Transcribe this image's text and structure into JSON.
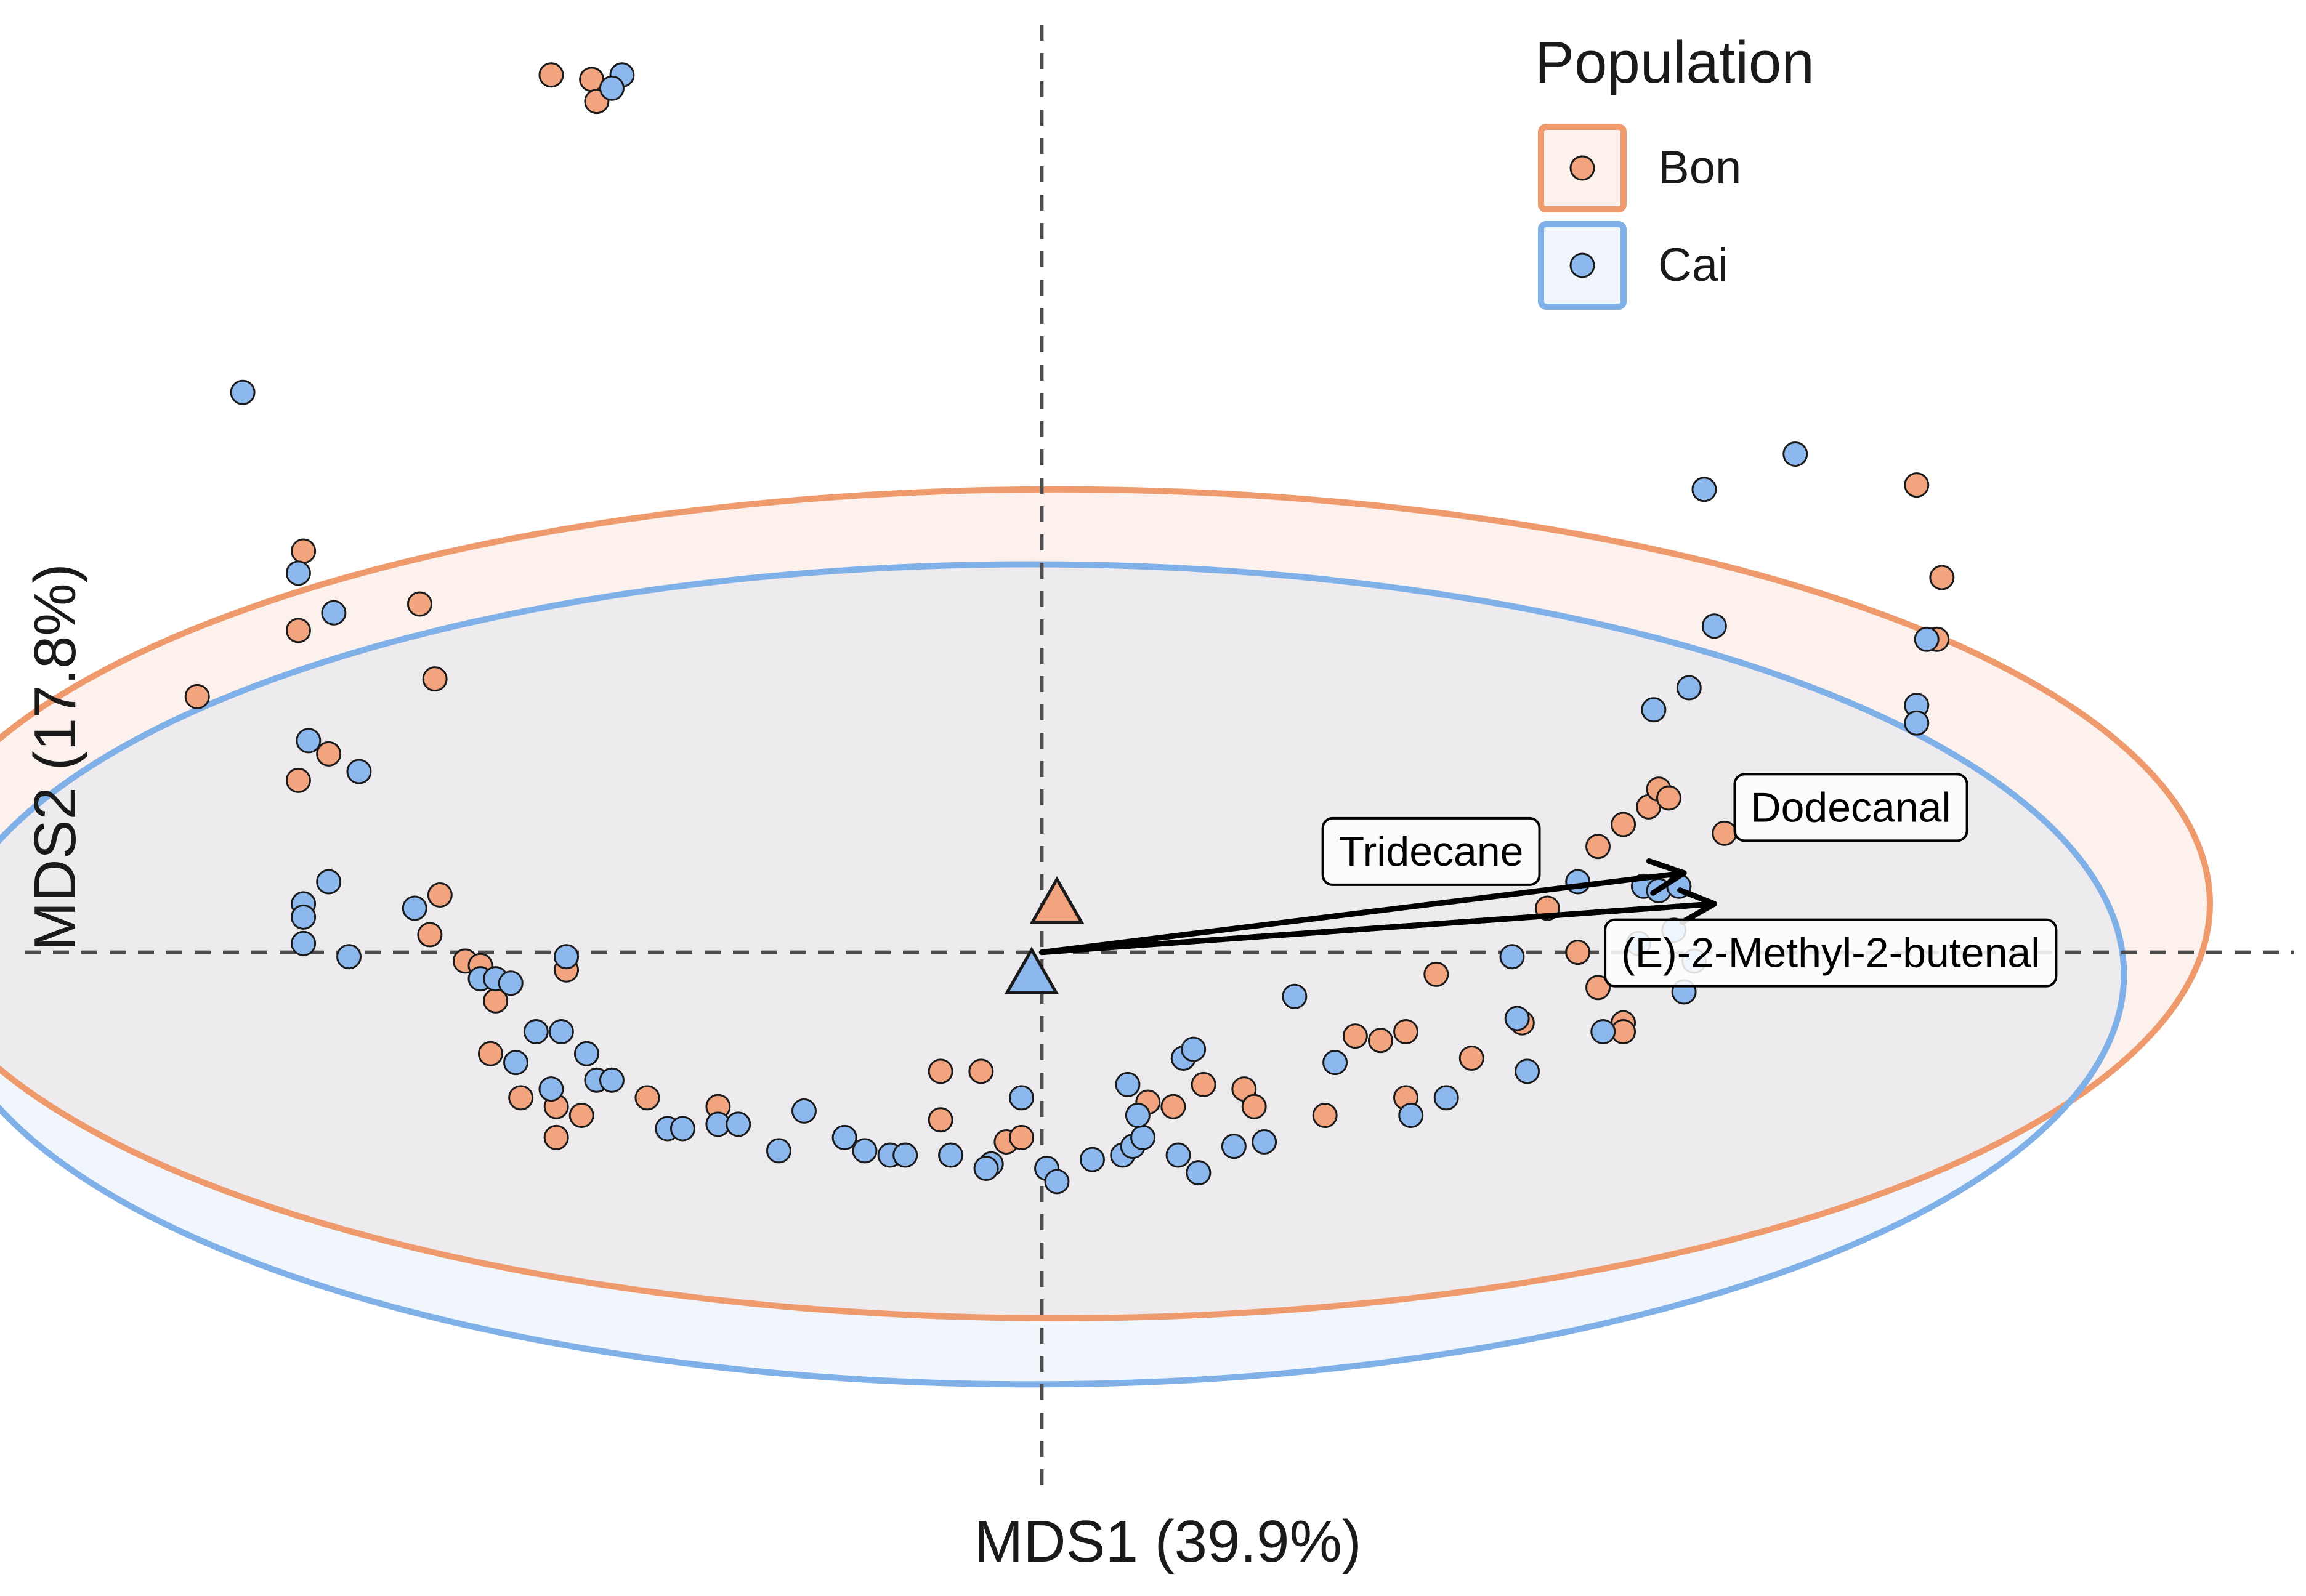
{
  "chart_data": {
    "type": "scatter",
    "xlabel": "MDS1 (39.9%)",
    "ylabel": "MDS2 (17.8%)",
    "xlim": [
      -2.06,
      2.5
    ],
    "ylim": [
      -1.46,
      2.16
    ],
    "reference_lines": {
      "x": 0,
      "y": 0,
      "style": "dashed"
    },
    "legend": {
      "title": "Population",
      "placement": "top-right",
      "entries": [
        {
          "name": "Bon",
          "color": "#ee9a6c"
        },
        {
          "name": "Cai",
          "color": "#80b0e8"
        }
      ]
    },
    "series": [
      {
        "name": "Bon",
        "color": "#ee9a6c",
        "fill": "#f2a47f",
        "points": [
          [
            -0.97,
            1.99
          ],
          [
            -0.89,
            1.98
          ],
          [
            -0.88,
            1.93
          ],
          [
            -1.46,
            0.91
          ],
          [
            -1.47,
            0.73
          ],
          [
            -1.23,
            0.79
          ],
          [
            -1.2,
            0.62
          ],
          [
            -1.67,
            0.58
          ],
          [
            -1.47,
            0.39
          ],
          [
            -1.41,
            0.45
          ],
          [
            -1.19,
            0.13
          ],
          [
            -1.21,
            0.04
          ],
          [
            -1.14,
            -0.02
          ],
          [
            -1.11,
            -0.03
          ],
          [
            -0.94,
            -0.04
          ],
          [
            -1.08,
            -0.11
          ],
          [
            -1.09,
            -0.23
          ],
          [
            -1.03,
            -0.33
          ],
          [
            -0.96,
            -0.35
          ],
          [
            -0.91,
            -0.37
          ],
          [
            -0.96,
            -0.42
          ],
          [
            -0.78,
            -0.33
          ],
          [
            -0.64,
            -0.35
          ],
          [
            -0.2,
            -0.27
          ],
          [
            -0.12,
            -0.27
          ],
          [
            -0.2,
            -0.38
          ],
          [
            -0.07,
            -0.43
          ],
          [
            -0.04,
            -0.42
          ],
          [
            0.21,
            -0.34
          ],
          [
            0.26,
            -0.35
          ],
          [
            0.32,
            -0.3
          ],
          [
            0.4,
            -0.31
          ],
          [
            0.42,
            -0.35
          ],
          [
            0.56,
            -0.37
          ],
          [
            0.62,
            -0.19
          ],
          [
            0.67,
            -0.2
          ],
          [
            0.72,
            -0.18
          ],
          [
            0.72,
            -0.33
          ],
          [
            0.85,
            -0.24
          ],
          [
            0.95,
            -0.16
          ],
          [
            0.78,
            -0.05
          ],
          [
            1.0,
            0.1
          ],
          [
            1.1,
            0.24
          ],
          [
            1.15,
            0.29
          ],
          [
            1.2,
            0.33
          ],
          [
            1.22,
            0.37
          ],
          [
            1.24,
            0.35
          ],
          [
            1.35,
            0.27
          ],
          [
            1.15,
            -0.16
          ],
          [
            1.15,
            -0.18
          ],
          [
            1.06,
            0.0
          ],
          [
            1.1,
            -0.08
          ],
          [
            1.73,
            1.06
          ],
          [
            1.78,
            0.85
          ],
          [
            1.77,
            0.71
          ]
        ]
      },
      {
        "name": "Cai",
        "color": "#80b0e8",
        "fill": "#8cb8ee",
        "points": [
          [
            -0.83,
            1.99
          ],
          [
            -0.85,
            1.96
          ],
          [
            -1.58,
            1.27
          ],
          [
            -1.47,
            0.86
          ],
          [
            -1.4,
            0.77
          ],
          [
            -1.45,
            0.48
          ],
          [
            -1.35,
            0.41
          ],
          [
            -1.41,
            0.16
          ],
          [
            -1.46,
            0.11
          ],
          [
            -1.46,
            0.08
          ],
          [
            -1.46,
            0.02
          ],
          [
            -1.37,
            -0.01
          ],
          [
            -1.24,
            0.1
          ],
          [
            -0.94,
            -0.01
          ],
          [
            -1.11,
            -0.06
          ],
          [
            -1.08,
            -0.06
          ],
          [
            -1.05,
            -0.07
          ],
          [
            -1.0,
            -0.18
          ],
          [
            -0.95,
            -0.18
          ],
          [
            -0.9,
            -0.23
          ],
          [
            -1.04,
            -0.25
          ],
          [
            -0.88,
            -0.29
          ],
          [
            -0.85,
            -0.29
          ],
          [
            -0.97,
            -0.31
          ],
          [
            -0.74,
            -0.4
          ],
          [
            -0.71,
            -0.4
          ],
          [
            -0.64,
            -0.39
          ],
          [
            -0.6,
            -0.39
          ],
          [
            -0.52,
            -0.45
          ],
          [
            -0.47,
            -0.36
          ],
          [
            -0.39,
            -0.42
          ],
          [
            -0.35,
            -0.45
          ],
          [
            -0.3,
            -0.46
          ],
          [
            -0.27,
            -0.46
          ],
          [
            -0.18,
            -0.46
          ],
          [
            -0.1,
            -0.48
          ],
          [
            -0.11,
            -0.49
          ],
          [
            -0.04,
            -0.33
          ],
          [
            0.01,
            -0.49
          ],
          [
            0.03,
            -0.52
          ],
          [
            0.1,
            -0.47
          ],
          [
            0.16,
            -0.46
          ],
          [
            0.18,
            -0.44
          ],
          [
            0.2,
            -0.42
          ],
          [
            0.17,
            -0.3
          ],
          [
            0.19,
            -0.37
          ],
          [
            0.28,
            -0.24
          ],
          [
            0.3,
            -0.22
          ],
          [
            0.27,
            -0.46
          ],
          [
            0.31,
            -0.5
          ],
          [
            0.38,
            -0.44
          ],
          [
            0.44,
            -0.43
          ],
          [
            0.5,
            -0.1
          ],
          [
            0.58,
            -0.25
          ],
          [
            0.73,
            -0.37
          ],
          [
            0.8,
            -0.33
          ],
          [
            0.94,
            -0.15
          ],
          [
            0.96,
            -0.27
          ],
          [
            1.18,
            0.02
          ],
          [
            1.06,
            0.16
          ],
          [
            1.11,
            -0.18
          ],
          [
            0.93,
            -0.01
          ],
          [
            1.19,
            0.15
          ],
          [
            1.22,
            0.14
          ],
          [
            1.26,
            0.15
          ],
          [
            1.25,
            0.05
          ],
          [
            1.29,
            -0.02
          ],
          [
            1.27,
            -0.09
          ],
          [
            1.21,
            0.55
          ],
          [
            1.28,
            0.6
          ],
          [
            1.33,
            0.74
          ],
          [
            1.31,
            1.05
          ],
          [
            1.49,
            1.13
          ],
          [
            1.75,
            0.71
          ],
          [
            1.73,
            0.56
          ],
          [
            1.73,
            0.52
          ]
        ]
      }
    ],
    "centroids": [
      {
        "name": "Bon",
        "x": 0.03,
        "y": 0.11,
        "marker": "triangle"
      },
      {
        "name": "Cai",
        "x": -0.02,
        "y": -0.05,
        "marker": "triangle"
      }
    ],
    "ellipses": [
      {
        "name": "Bon",
        "cx": 0.03,
        "cy": 0.11,
        "rx": 2.28,
        "ry": 0.94,
        "stroke": "#ee9a6c",
        "fill": "#fcf1ec"
      },
      {
        "name": "Cai",
        "cx": -0.02,
        "cy": -0.05,
        "rx": 2.16,
        "ry": 0.93,
        "stroke": "#80b0e8",
        "fill": "#f1f6fd"
      }
    ],
    "vectors": [
      {
        "label": "Tridecane",
        "x": 1.27,
        "y": 0.18,
        "label_x": 0.77,
        "label_y": 0.23
      },
      {
        "label": "Dodecanal",
        "x": 1.33,
        "y": 0.11,
        "label_x": 1.6,
        "label_y": 0.33
      },
      {
        "label": "(E)-2-Methyl-2-butenal",
        "x": 1.33,
        "y": 0.11,
        "label_x": 1.56,
        "label_y": 0.0
      }
    ]
  }
}
